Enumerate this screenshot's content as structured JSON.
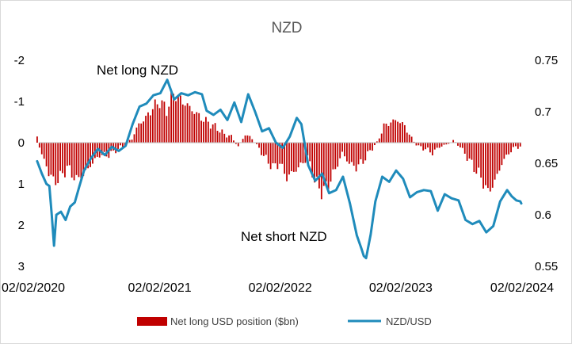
{
  "chart_data": {
    "type": "bar+line",
    "title": "NZD",
    "x_ticks": [
      "02/02/2020",
      "02/02/2021",
      "02/02/2022",
      "02/02/2023",
      "02/02/2024"
    ],
    "y_left": {
      "reversed": true,
      "ylim": [
        3,
        -2
      ],
      "ticks": [
        "-2",
        "-1",
        "0",
        "1",
        "2",
        "3"
      ]
    },
    "y_right": {
      "ylim": [
        0.55,
        0.75
      ],
      "ticks": [
        "0.75",
        "0.7",
        "0.65",
        "0.6",
        "0.55"
      ]
    },
    "annotations": {
      "top": "Net long NZD",
      "bottom": "Net short NZD"
    },
    "series": [
      {
        "name": "Net long USD position ($bn)",
        "axis": "left",
        "color": "#c00000",
        "frequency": "weekly",
        "anchors": [
          [
            "2020-01-28",
            -0.15
          ],
          [
            "2020-02-04",
            0.1
          ],
          [
            "2020-02-18",
            0.45
          ],
          [
            "2020-03-03",
            0.7
          ],
          [
            "2020-03-17",
            0.95
          ],
          [
            "2020-04-07",
            0.85
          ],
          [
            "2020-04-28",
            0.6
          ],
          [
            "2020-05-26",
            0.9
          ],
          [
            "2020-06-16",
            0.8
          ],
          [
            "2020-07-07",
            0.55
          ],
          [
            "2020-08-04",
            0.3
          ],
          [
            "2020-09-01",
            0.3
          ],
          [
            "2020-09-29",
            0.15
          ],
          [
            "2020-10-20",
            0.05
          ],
          [
            "2020-11-10",
            -0.1
          ],
          [
            "2020-12-01",
            -0.45
          ],
          [
            "2020-12-22",
            -0.6
          ],
          [
            "2021-01-12",
            -0.85
          ],
          [
            "2021-02-02",
            -1.0
          ],
          [
            "2021-02-23",
            -0.8
          ],
          [
            "2021-03-16",
            -1.2
          ],
          [
            "2021-04-06",
            -1.05
          ],
          [
            "2021-04-27",
            -0.9
          ],
          [
            "2021-05-18",
            -0.75
          ],
          [
            "2021-06-08",
            -0.6
          ],
          [
            "2021-07-06",
            -0.45
          ],
          [
            "2021-07-27",
            -0.35
          ],
          [
            "2021-08-17",
            -0.2
          ],
          [
            "2021-09-07",
            -0.15
          ],
          [
            "2021-09-28",
            0.1
          ],
          [
            "2021-10-19",
            -0.2
          ],
          [
            "2021-11-09",
            -0.1
          ],
          [
            "2021-11-30",
            0.15
          ],
          [
            "2021-12-21",
            0.4
          ],
          [
            "2022-01-11",
            0.6
          ],
          [
            "2022-02-01",
            0.5
          ],
          [
            "2022-02-22",
            0.85
          ],
          [
            "2022-03-15",
            0.7
          ],
          [
            "2022-04-05",
            0.55
          ],
          [
            "2022-04-26",
            0.35
          ],
          [
            "2022-05-17",
            0.9
          ],
          [
            "2022-06-07",
            1.2
          ],
          [
            "2022-06-28",
            1.0
          ],
          [
            "2022-07-19",
            0.65
          ],
          [
            "2022-08-09",
            0.25
          ],
          [
            "2022-08-30",
            0.5
          ],
          [
            "2022-09-20",
            0.6
          ],
          [
            "2022-10-11",
            0.45
          ],
          [
            "2022-11-01",
            0.2
          ],
          [
            "2022-11-22",
            0.0
          ],
          [
            "2022-12-13",
            -0.4
          ],
          [
            "2023-01-03",
            -0.5
          ],
          [
            "2023-01-24",
            -0.55
          ],
          [
            "2023-02-14",
            -0.4
          ],
          [
            "2023-03-07",
            -0.1
          ],
          [
            "2023-03-28",
            0.1
          ],
          [
            "2023-04-18",
            0.15
          ],
          [
            "2023-05-09",
            0.25
          ],
          [
            "2023-05-30",
            0.1
          ],
          [
            "2023-06-20",
            0.05
          ],
          [
            "2023-07-11",
            -0.05
          ],
          [
            "2023-08-01",
            0.1
          ],
          [
            "2023-08-22",
            0.35
          ],
          [
            "2023-09-12",
            0.6
          ],
          [
            "2023-10-03",
            0.85
          ],
          [
            "2023-10-24",
            1.2
          ],
          [
            "2023-11-14",
            0.95
          ],
          [
            "2023-12-05",
            0.5
          ],
          [
            "2023-12-26",
            0.25
          ],
          [
            "2024-01-16",
            0.1
          ],
          [
            "2024-01-30",
            0.1
          ]
        ]
      },
      {
        "name": "NZD/USD",
        "axis": "right",
        "color": "#1f8bbb",
        "anchors": [
          [
            "2020-01-28",
            0.652
          ],
          [
            "2020-02-11",
            0.64
          ],
          [
            "2020-02-25",
            0.63
          ],
          [
            "2020-03-05",
            0.628
          ],
          [
            "2020-03-12",
            0.6
          ],
          [
            "2020-03-19",
            0.57
          ],
          [
            "2020-03-26",
            0.6
          ],
          [
            "2020-04-09",
            0.603
          ],
          [
            "2020-04-23",
            0.595
          ],
          [
            "2020-05-07",
            0.608
          ],
          [
            "2020-05-21",
            0.612
          ],
          [
            "2020-06-04",
            0.628
          ],
          [
            "2020-06-18",
            0.643
          ],
          [
            "2020-07-09",
            0.655
          ],
          [
            "2020-07-30",
            0.664
          ],
          [
            "2020-08-20",
            0.658
          ],
          [
            "2020-09-10",
            0.666
          ],
          [
            "2020-10-01",
            0.662
          ],
          [
            "2020-10-22",
            0.667
          ],
          [
            "2020-11-12",
            0.688
          ],
          [
            "2020-12-03",
            0.705
          ],
          [
            "2020-12-24",
            0.708
          ],
          [
            "2021-01-14",
            0.716
          ],
          [
            "2021-02-04",
            0.718
          ],
          [
            "2021-02-25",
            0.731
          ],
          [
            "2021-03-18",
            0.712
          ],
          [
            "2021-04-08",
            0.718
          ],
          [
            "2021-04-29",
            0.716
          ],
          [
            "2021-05-20",
            0.719
          ],
          [
            "2021-06-10",
            0.717
          ],
          [
            "2021-06-24",
            0.701
          ],
          [
            "2021-07-15",
            0.697
          ],
          [
            "2021-08-05",
            0.702
          ],
          [
            "2021-08-26",
            0.692
          ],
          [
            "2021-09-16",
            0.709
          ],
          [
            "2021-10-07",
            0.69
          ],
          [
            "2021-10-28",
            0.717
          ],
          [
            "2021-11-18",
            0.7
          ],
          [
            "2021-12-09",
            0.681
          ],
          [
            "2021-12-30",
            0.684
          ],
          [
            "2022-01-20",
            0.67
          ],
          [
            "2022-02-10",
            0.665
          ],
          [
            "2022-03-03",
            0.676
          ],
          [
            "2022-03-24",
            0.694
          ],
          [
            "2022-04-07",
            0.688
          ],
          [
            "2022-04-28",
            0.648
          ],
          [
            "2022-05-19",
            0.633
          ],
          [
            "2022-06-09",
            0.64
          ],
          [
            "2022-06-30",
            0.621
          ],
          [
            "2022-07-21",
            0.624
          ],
          [
            "2022-08-11",
            0.637
          ],
          [
            "2022-09-01",
            0.611
          ],
          [
            "2022-09-22",
            0.58
          ],
          [
            "2022-10-06",
            0.567
          ],
          [
            "2022-10-13",
            0.56
          ],
          [
            "2022-10-20",
            0.558
          ],
          [
            "2022-11-03",
            0.581
          ],
          [
            "2022-11-17",
            0.613
          ],
          [
            "2022-12-08",
            0.637
          ],
          [
            "2022-12-29",
            0.632
          ],
          [
            "2023-01-19",
            0.643
          ],
          [
            "2023-02-09",
            0.635
          ],
          [
            "2023-03-02",
            0.617
          ],
          [
            "2023-03-23",
            0.622
          ],
          [
            "2023-04-13",
            0.624
          ],
          [
            "2023-05-04",
            0.623
          ],
          [
            "2023-05-25",
            0.604
          ],
          [
            "2023-06-15",
            0.62
          ],
          [
            "2023-07-06",
            0.616
          ],
          [
            "2023-07-27",
            0.614
          ],
          [
            "2023-08-17",
            0.595
          ],
          [
            "2023-09-07",
            0.591
          ],
          [
            "2023-09-28",
            0.594
          ],
          [
            "2023-10-19",
            0.583
          ],
          [
            "2023-11-09",
            0.589
          ],
          [
            "2023-11-30",
            0.613
          ],
          [
            "2023-12-21",
            0.624
          ],
          [
            "2024-01-04",
            0.618
          ],
          [
            "2024-01-18",
            0.614
          ],
          [
            "2024-01-30",
            0.613
          ],
          [
            "2024-02-02",
            0.611
          ]
        ]
      }
    ]
  }
}
